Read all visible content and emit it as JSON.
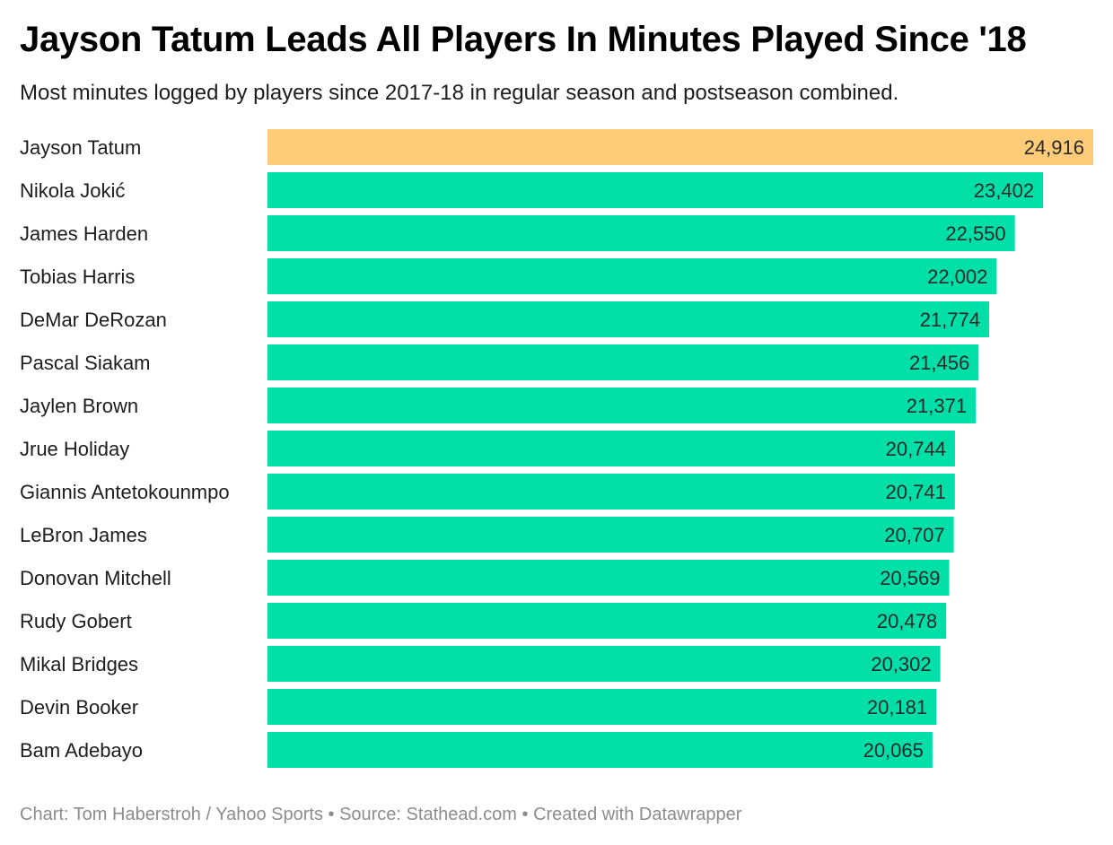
{
  "header": {
    "title": "Jayson Tatum Leads All Players In Minutes Played Since '18",
    "subtitle": "Most minutes logged by players since 2017-18 in regular season and postseason combined."
  },
  "footer": {
    "credit": "Chart: Tom Haberstroh / Yahoo Sports • Source: Stathead.com • Created with Datawrapper"
  },
  "colors": {
    "highlight": "#fecb78",
    "default": "#00dfa8"
  },
  "chart_data": {
    "type": "bar",
    "orientation": "horizontal",
    "title": "Jayson Tatum Leads All Players In Minutes Played Since '18",
    "subtitle": "Most minutes logged by players since 2017-18 in regular season and postseason combined.",
    "xlabel": "",
    "ylabel": "",
    "xlim": [
      0,
      24916
    ],
    "grid": false,
    "legend": "none",
    "highlight_category": "Jayson Tatum",
    "categories": [
      "Jayson Tatum",
      "Nikola Jokić",
      "James Harden",
      "Tobias Harris",
      "DeMar DeRozan",
      "Pascal Siakam",
      "Jaylen Brown",
      "Jrue Holiday",
      "Giannis Antetokounmpo",
      "LeBron James",
      "Donovan Mitchell",
      "Rudy Gobert",
      "Mikal Bridges",
      "Devin Booker",
      "Bam Adebayo"
    ],
    "values": [
      24916,
      23402,
      22550,
      22002,
      21774,
      21456,
      21371,
      20744,
      20741,
      20707,
      20569,
      20478,
      20302,
      20181,
      20065
    ],
    "value_labels": [
      "24,916",
      "23,402",
      "22,550",
      "22,002",
      "21,774",
      "21,456",
      "21,371",
      "20,744",
      "20,741",
      "20,707",
      "20,569",
      "20,478",
      "20,302",
      "20,181",
      "20,065"
    ]
  }
}
